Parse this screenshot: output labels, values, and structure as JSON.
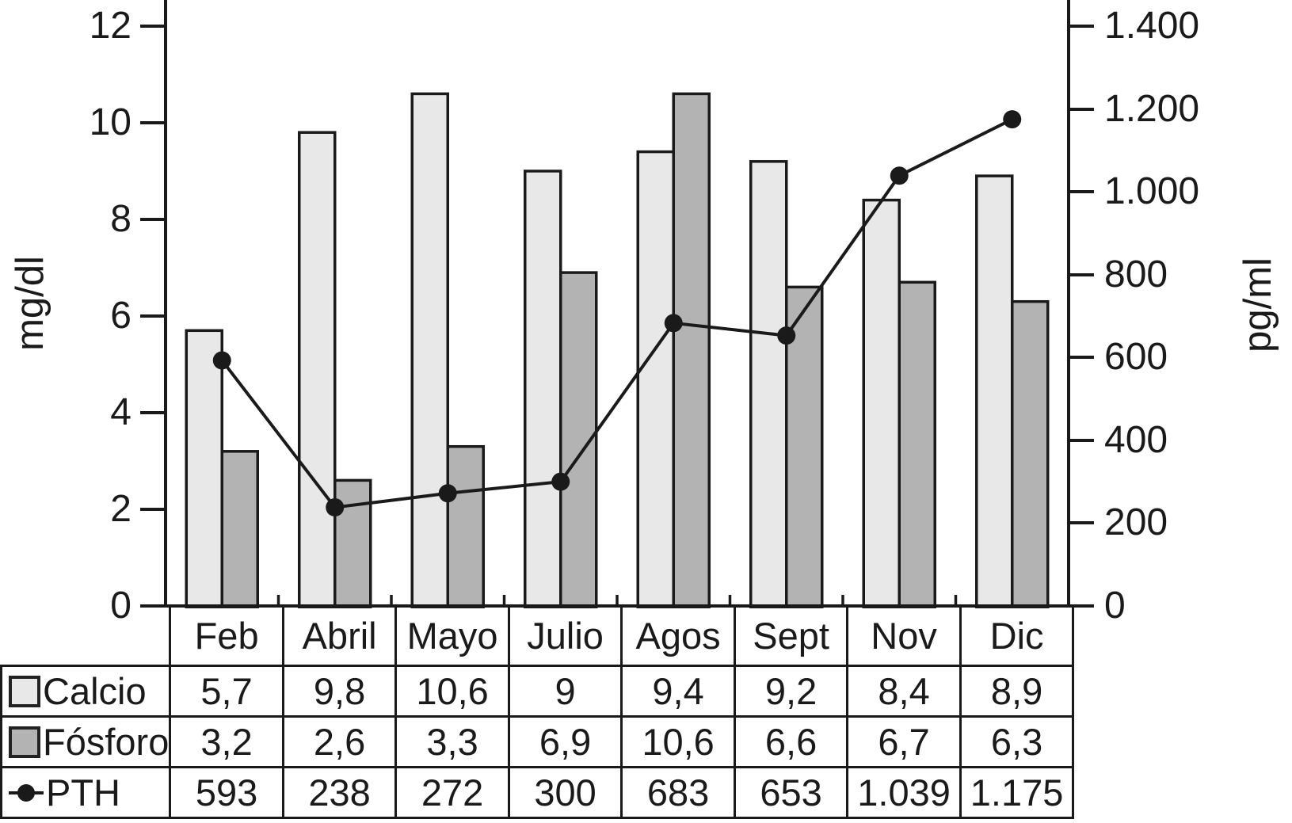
{
  "chart_data": {
    "type": "bar",
    "subtype": "grouped-bars-with-line-overlay",
    "title": "",
    "categories": [
      "Feb",
      "Abril",
      "Mayo",
      "Julio",
      "Agos",
      "Sept",
      "Nov",
      "Dic"
    ],
    "series": [
      {
        "id": "calcio",
        "name": "Calcio",
        "kind": "bar",
        "axis": "left",
        "color": "#e8e8e8",
        "values": [
          5.7,
          9.8,
          10.6,
          9,
          9.4,
          9.2,
          8.4,
          8.9
        ],
        "display_values": [
          "5,7",
          "9,8",
          "10,6",
          "9",
          "9,4",
          "9,2",
          "8,4",
          "8,9"
        ]
      },
      {
        "id": "fosforo",
        "name": "Fósforo",
        "kind": "bar",
        "axis": "left",
        "color": "#b3b3b3",
        "values": [
          3.2,
          2.6,
          3.3,
          6.9,
          10.6,
          6.6,
          6.7,
          6.3
        ],
        "display_values": [
          "3,2",
          "2,6",
          "3,3",
          "6,9",
          "10,6",
          "6,6",
          "6,7",
          "6,3"
        ]
      },
      {
        "id": "pth",
        "name": "PTH",
        "kind": "line",
        "axis": "right",
        "color": "#1a1a1a",
        "values": [
          593,
          238,
          272,
          300,
          683,
          653,
          1039,
          1175
        ],
        "display_values": [
          "593",
          "238",
          "272",
          "300",
          "683",
          "653",
          "1.039",
          "1.175"
        ]
      }
    ],
    "left_axis": {
      "label": "mg/dl",
      "min": 0,
      "max": 12,
      "tick_values": [
        0,
        2,
        4,
        6,
        8,
        10,
        12
      ],
      "tick_labels": [
        "0",
        "2",
        "4",
        "6",
        "8",
        "10",
        "12"
      ]
    },
    "right_axis": {
      "label": "pg/ml",
      "min": 0,
      "max": 1400,
      "tick_values": [
        0,
        200,
        400,
        600,
        800,
        1000,
        1200,
        1400
      ],
      "tick_labels": [
        "0",
        "200",
        "400",
        "600",
        "800",
        "1.000",
        "1.200",
        "1.400"
      ]
    },
    "grid": false,
    "legend_position": "table-rows-left",
    "line_color": "#1a1a1a",
    "bar_border_color": "#1a1a1a",
    "text_color": "#1a1a1a"
  }
}
